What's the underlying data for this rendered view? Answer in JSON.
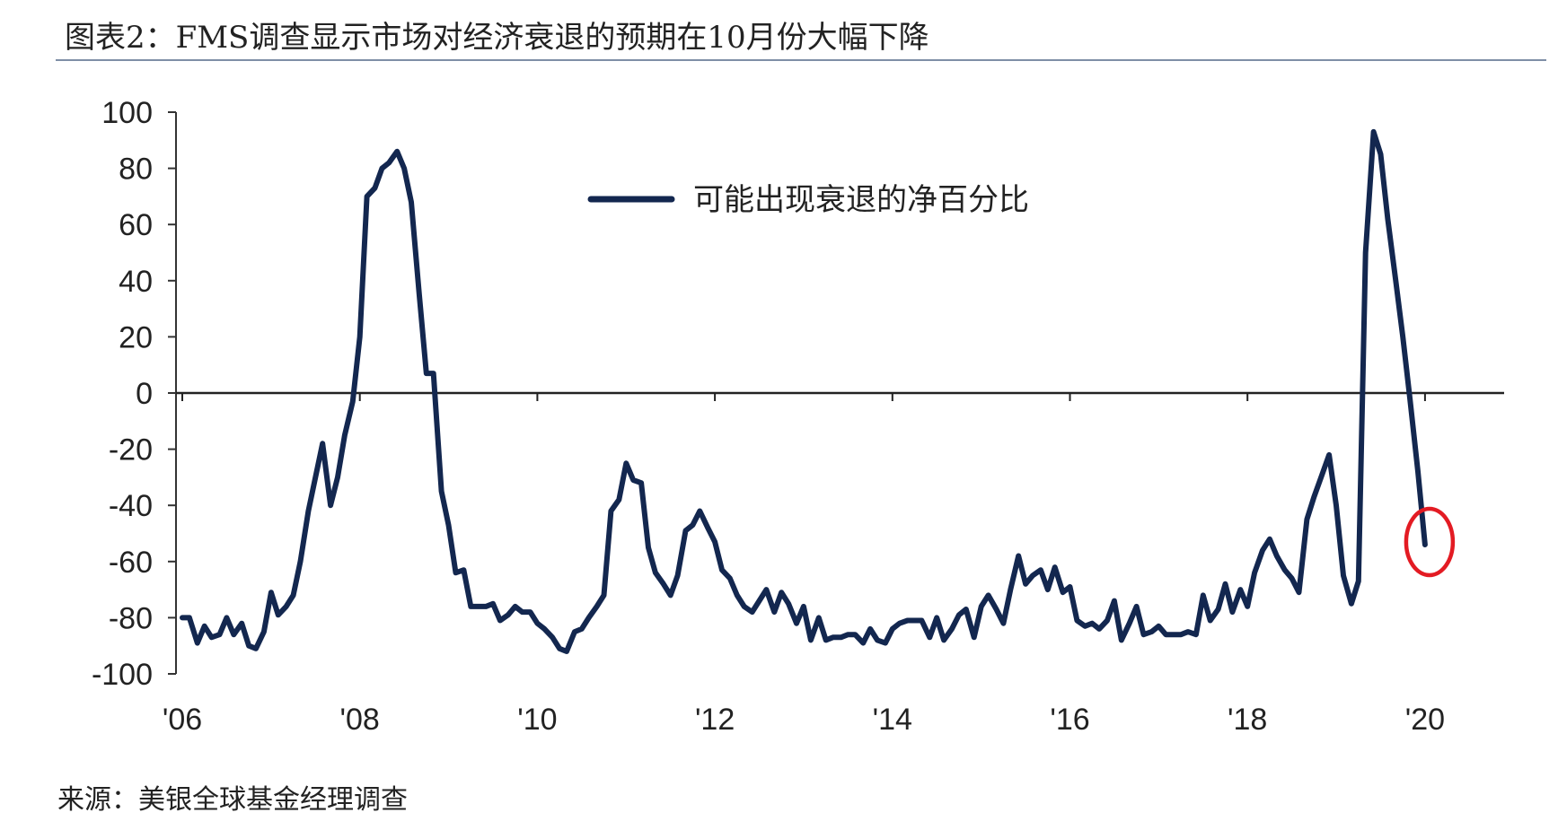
{
  "title": "图表2：FMS调查显示市场对经济衰退的预期在10月份大幅下降",
  "source": "来源：美银全球基金经理调查",
  "chart_data": {
    "type": "line",
    "title": "图表2：FMS调查显示市场对经济衰退的预期在10月份大幅下降",
    "xlabel": "",
    "ylabel": "",
    "ylim": [
      -100,
      100
    ],
    "xlim": [
      2006.0,
      2020.75
    ],
    "y_ticks": [
      100,
      80,
      60,
      40,
      20,
      0,
      -20,
      -40,
      -60,
      -80,
      -100
    ],
    "x_ticks": [
      {
        "value": 2006,
        "label": "'06"
      },
      {
        "value": 2008,
        "label": "'08"
      },
      {
        "value": 2010,
        "label": "'10"
      },
      {
        "value": 2012,
        "label": "'12"
      },
      {
        "value": 2014,
        "label": "'14"
      },
      {
        "value": 2016,
        "label": "'16"
      },
      {
        "value": 2018,
        "label": "'18"
      },
      {
        "value": 2020,
        "label": "'20"
      }
    ],
    "grid": false,
    "zero_line": true,
    "legend": "top-center",
    "series": [
      {
        "name": "可能出现衰退的净百分比",
        "color": "#13274f",
        "x": [
          2006.0,
          2006.08,
          2006.17,
          2006.25,
          2006.33,
          2006.42,
          2006.5,
          2006.58,
          2006.67,
          2006.75,
          2006.83,
          2006.92,
          2007.0,
          2007.08,
          2007.17,
          2007.25,
          2007.33,
          2007.42,
          2007.5,
          2007.58,
          2007.67,
          2007.75,
          2007.83,
          2007.92,
          2008.0,
          2008.08,
          2008.17,
          2008.25,
          2008.33,
          2008.42,
          2008.5,
          2008.58,
          2008.67,
          2008.75,
          2008.83,
          2008.92,
          2009.0,
          2009.08,
          2009.17,
          2009.25,
          2009.33,
          2009.42,
          2009.5,
          2009.58,
          2009.67,
          2009.75,
          2009.83,
          2009.92,
          2010.0,
          2010.08,
          2010.17,
          2010.25,
          2010.33,
          2010.42,
          2010.5,
          2010.58,
          2010.67,
          2010.75,
          2010.83,
          2010.92,
          2011.0,
          2011.08,
          2011.17,
          2011.25,
          2011.33,
          2011.42,
          2011.5,
          2011.58,
          2011.67,
          2011.75,
          2011.83,
          2011.92,
          2012.0,
          2012.08,
          2012.17,
          2012.25,
          2012.33,
          2012.42,
          2012.5,
          2012.58,
          2012.67,
          2012.75,
          2012.83,
          2012.92,
          2013.0,
          2013.08,
          2013.17,
          2013.25,
          2013.33,
          2013.42,
          2013.5,
          2013.58,
          2013.67,
          2013.75,
          2013.83,
          2013.92,
          2014.0,
          2014.08,
          2014.17,
          2014.25,
          2014.33,
          2014.42,
          2014.5,
          2014.58,
          2014.67,
          2014.75,
          2014.83,
          2014.92,
          2015.0,
          2015.08,
          2015.17,
          2015.25,
          2015.33,
          2015.42,
          2015.5,
          2015.58,
          2015.67,
          2015.75,
          2015.83,
          2015.92,
          2016.0,
          2016.08,
          2016.17,
          2016.25,
          2016.33,
          2016.42,
          2016.5,
          2016.58,
          2016.67,
          2016.75,
          2016.83,
          2016.92,
          2017.0,
          2017.08,
          2017.17,
          2017.25,
          2017.33,
          2017.42,
          2017.5,
          2017.58,
          2017.67,
          2017.75,
          2017.83,
          2017.92,
          2018.0,
          2018.08,
          2018.17,
          2018.25,
          2018.33,
          2018.42,
          2018.5,
          2018.58,
          2018.67,
          2018.75,
          2018.83,
          2018.92,
          2019.0,
          2019.08,
          2019.17,
          2019.25,
          2019.33,
          2019.42,
          2019.5,
          2019.58,
          2019.67,
          2019.75,
          2019.83,
          2019.92,
          2020.0
        ],
        "values": [
          -80,
          -80,
          -89,
          -83,
          -87,
          -86,
          -80,
          -86,
          -82,
          -90,
          -91,
          -85,
          -71,
          -79,
          -76,
          -72,
          -60,
          -42,
          -30,
          -18,
          -40,
          -30,
          -15,
          -3,
          20,
          70,
          73,
          80,
          82,
          86,
          80,
          68,
          35,
          7,
          7,
          -35,
          -47,
          -64,
          -63,
          -76,
          -76,
          -76,
          -75,
          -81,
          -79,
          -76,
          -78,
          -78,
          -82,
          -84,
          -87,
          -91,
          -92,
          -85,
          -84,
          -80,
          -76,
          -72,
          -42,
          -38,
          -25,
          -31,
          -32,
          -55,
          -64,
          -68,
          -72,
          -65,
          -49,
          -47,
          -42,
          -48,
          -53,
          -63,
          -66,
          -72,
          -76,
          -78,
          -74,
          -70,
          -78,
          -71,
          -75,
          -82,
          -76,
          -88,
          -80,
          -88,
          -87,
          -87,
          -86,
          -86,
          -89,
          -84,
          -88,
          -89,
          -84,
          -82,
          -81,
          -81,
          -81,
          -87,
          -80,
          -88,
          -84,
          -79,
          -77,
          -87,
          -76,
          -72,
          -77,
          -82,
          -70,
          -58,
          -68,
          -65,
          -63,
          -70,
          -62,
          -71,
          -69,
          -81,
          -83,
          -82,
          -84,
          -81,
          -74,
          -88,
          -82,
          -76,
          -86,
          -85,
          -83,
          -86,
          -86,
          -86,
          -85,
          -86,
          -72,
          -81,
          -77,
          -68,
          -78,
          -70,
          -76,
          -64,
          -56,
          -52,
          -58,
          -63,
          -66,
          -71,
          -45,
          -37,
          -30,
          -22,
          -40,
          -65,
          -75,
          -67,
          50,
          93,
          85,
          62,
          40,
          20,
          -2,
          -28,
          -54
        ]
      }
    ],
    "annotations": [
      {
        "type": "circle",
        "x": 2020.0,
        "y": -54,
        "color": "#e31b23"
      }
    ]
  }
}
